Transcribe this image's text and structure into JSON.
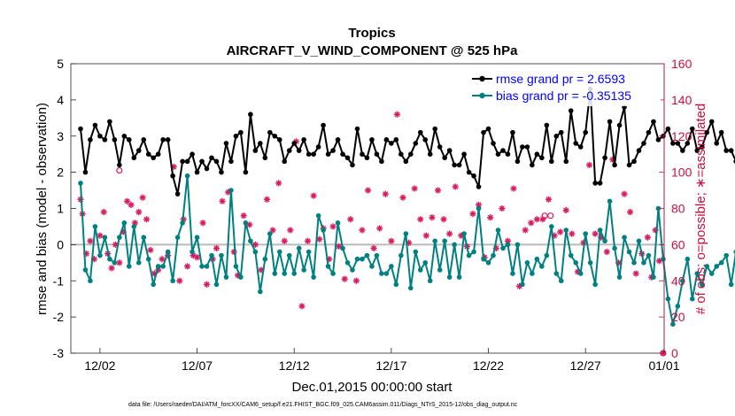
{
  "chart_data": {
    "type": "line",
    "title": "Tropics",
    "subtitle": "AIRCRAFT_V_WIND_COMPONENT @ 525 hPa",
    "xlabel": "Dec.01,2015 00:00:00 start",
    "ylabel": "rmse and bias (model - observation)",
    "y2label": "# of obs: o=possible; ∗=assimilated",
    "ylim": [
      -3,
      5
    ],
    "y2lim": [
      0,
      160
    ],
    "xlim": [
      0.5,
      31.05
    ],
    "yticks": [
      "-3",
      "-2",
      "-1",
      "0",
      "1",
      "2",
      "3",
      "4",
      "5"
    ],
    "y2ticks": [
      "0",
      "20",
      "40",
      "60",
      "80",
      "100",
      "120",
      "140",
      "160"
    ],
    "xticks": [
      {
        "x": 2,
        "label": "12/02"
      },
      {
        "x": 7,
        "label": "12/07"
      },
      {
        "x": 12,
        "label": "12/12"
      },
      {
        "x": 17,
        "label": "12/17"
      },
      {
        "x": 22,
        "label": "12/22"
      },
      {
        "x": 27,
        "label": "12/27"
      },
      {
        "x": 32,
        "label": "01/01"
      }
    ],
    "legend": [
      {
        "label": "rmse grand pr = 2.6593",
        "color": "#000000"
      },
      {
        "label": "bias grand pr = -0.35135",
        "color": "#008080"
      }
    ],
    "legend_position": "top-right",
    "colors": {
      "rmse": "#000000",
      "bias": "#008080",
      "obs": "#d81b60",
      "zero": "#bbbbbb"
    },
    "x_start": 1,
    "x_step": 0.25,
    "series": [
      {
        "name": "rmse",
        "axis": "left",
        "values": [
          3.2,
          2.0,
          2.9,
          3.3,
          3.0,
          2.9,
          3.4,
          2.9,
          2.2,
          3.0,
          2.9,
          2.4,
          2.6,
          2.9,
          2.5,
          2.4,
          2.5,
          2.9,
          2.9,
          1.9,
          1.4,
          2.3,
          2.3,
          2.5,
          2.0,
          2.3,
          2.1,
          2.4,
          2.3,
          2.0,
          2.8,
          2.3,
          3.0,
          3.1,
          2.0,
          3.6,
          2.6,
          2.8,
          2.4,
          3.1,
          3.0,
          2.9,
          2.3,
          2.6,
          2.8,
          2.6,
          2.9,
          2.5,
          2.5,
          2.7,
          3.3,
          2.5,
          2.6,
          2.9,
          2.5,
          2.4,
          2.2,
          3.2,
          2.5,
          2.4,
          2.9,
          2.5,
          2.3,
          2.9,
          2.8,
          2.9,
          2.5,
          2.3,
          2.5,
          2.8,
          3.1,
          2.9,
          2.5,
          3.2,
          2.7,
          2.4,
          2.6,
          2.2,
          2.2,
          2.5,
          2.0,
          1.9,
          1.6,
          3.1,
          3.2,
          2.8,
          2.5,
          2.6,
          2.5,
          3.1,
          2.3,
          2.7,
          2.7,
          2.2,
          2.5,
          2.4,
          3.3,
          2.3,
          3.0,
          3.1,
          2.3,
          3.7,
          2.8,
          2.7,
          3.1,
          4.3,
          1.7,
          1.7,
          2.4,
          3.4,
          2.2,
          3.3,
          3.8,
          2.2,
          2.3,
          2.6,
          2.8,
          3.1,
          3.4,
          2.9,
          3.0,
          3.2,
          2.8,
          2.8,
          2.6,
          2.8,
          3.2,
          2.6,
          2.7,
          3.1,
          3.4,
          2.8,
          3.1,
          2.6,
          2.6,
          2.3,
          2.5,
          2.3,
          2.4,
          2.3,
          2.4,
          2.5,
          3.5,
          2.4
        ]
      },
      {
        "name": "bias",
        "axis": "left",
        "values": [
          1.7,
          -0.7,
          -1.0,
          0.5,
          -0.3,
          0.2,
          -0.4,
          -0.5,
          0.2,
          0.6,
          -0.6,
          0.5,
          -0.5,
          0.2,
          -0.4,
          -1.1,
          -0.6,
          -0.6,
          -0.2,
          -1.0,
          0.2,
          0.6,
          1.9,
          -0.2,
          0.2,
          -0.6,
          -0.6,
          -0.3,
          -1.1,
          -0.3,
          -0.9,
          1.5,
          -0.6,
          -0.9,
          0.6,
          0.1,
          -0.2,
          -1.3,
          -0.4,
          0.3,
          -0.8,
          -0.2,
          -0.8,
          -0.3,
          -0.8,
          -0.1,
          -0.7,
          -0.2,
          -0.9,
          0.8,
          0.4,
          -0.6,
          -0.8,
          0.6,
          -0.1,
          -0.5,
          -0.7,
          -0.4,
          -0.4,
          -0.3,
          -0.6,
          -0.3,
          -0.8,
          -0.8,
          -0.6,
          -1.1,
          -0.3,
          0.3,
          -1.2,
          -0.2,
          -0.7,
          -0.5,
          -1.0,
          0.1,
          -0.7,
          0.1,
          -0.9,
          0.0,
          -0.9,
          0.3,
          -0.3,
          -0.2,
          1.0,
          -0.4,
          -0.5,
          -0.3,
          0.4,
          -0.1,
          0.0,
          -0.8,
          0.0,
          -1.1,
          -0.5,
          -0.8,
          -0.4,
          -0.6,
          -0.3,
          0.5,
          -0.8,
          -1.0,
          0.4,
          -0.3,
          -0.5,
          -0.8,
          0.3,
          -0.5,
          -1.1,
          0.4,
          0.1,
          1.2,
          -0.1,
          -0.9,
          0.2,
          -0.2,
          -0.5,
          0.1,
          -0.5,
          -0.3,
          -0.9,
          1.0,
          -0.4,
          -1.5,
          -2.2,
          -1.7,
          -1.0,
          -0.4,
          -1.5,
          -0.8,
          -1.1,
          -0.6,
          -0.8,
          -0.6,
          -0.5,
          -0.3,
          -1.1,
          -0.2,
          -0.7,
          0.5,
          -0.8,
          0.2,
          0.6,
          -0.5,
          0.8,
          -0.6
        ]
      },
      {
        "name": "assimilated",
        "axis": "right",
        "marker": "asterisk",
        "points": [
          [
            1.0,
            85
          ],
          [
            1.1,
            77
          ],
          [
            1.3,
            55
          ],
          [
            1.5,
            62
          ],
          [
            1.7,
            52
          ],
          [
            2.0,
            65
          ],
          [
            2.2,
            78
          ],
          [
            2.4,
            55
          ],
          [
            2.6,
            47
          ],
          [
            2.8,
            60
          ],
          [
            3.0,
            50
          ],
          [
            3.2,
            67
          ],
          [
            3.4,
            84
          ],
          [
            3.6,
            82
          ],
          [
            3.8,
            72
          ],
          [
            4.0,
            78
          ],
          [
            4.2,
            86
          ],
          [
            4.4,
            74
          ],
          [
            4.6,
            57
          ],
          [
            4.8,
            44
          ],
          [
            5.0,
            46
          ],
          [
            5.2,
            52
          ],
          [
            5.5,
            54
          ],
          [
            5.8,
            103
          ],
          [
            6.1,
            40
          ],
          [
            6.3,
            74
          ],
          [
            6.5,
            48
          ],
          [
            6.8,
            54
          ],
          [
            7.0,
            53
          ],
          [
            7.3,
            72
          ],
          [
            7.5,
            38
          ],
          [
            7.8,
            52
          ],
          [
            8.0,
            58
          ],
          [
            8.3,
            84
          ],
          [
            8.6,
            89
          ],
          [
            8.9,
            56
          ],
          [
            9.1,
            43
          ],
          [
            9.4,
            76
          ],
          [
            9.7,
            71
          ],
          [
            10.0,
            60
          ],
          [
            10.3,
            46
          ],
          [
            10.6,
            85
          ],
          [
            10.9,
            68
          ],
          [
            11.2,
            94
          ],
          [
            11.5,
            62
          ],
          [
            11.8,
            68
          ],
          [
            12.1,
            117
          ],
          [
            12.4,
            26
          ],
          [
            12.7,
            62
          ],
          [
            13.0,
            87
          ],
          [
            13.3,
            63
          ],
          [
            13.5,
            69
          ],
          [
            13.8,
            52
          ],
          [
            14.0,
            70
          ],
          [
            14.3,
            59
          ],
          [
            14.6,
            41
          ],
          [
            14.9,
            74
          ],
          [
            15.2,
            40
          ],
          [
            15.5,
            68
          ],
          [
            15.8,
            90
          ],
          [
            16.1,
            58
          ],
          [
            16.4,
            69
          ],
          [
            16.7,
            88
          ],
          [
            17.0,
            62
          ],
          [
            17.3,
            132
          ],
          [
            17.6,
            86
          ],
          [
            17.9,
            61
          ],
          [
            18.2,
            91
          ],
          [
            18.5,
            74
          ],
          [
            18.8,
            65
          ],
          [
            19.1,
            75
          ],
          [
            19.4,
            90
          ],
          [
            19.7,
            74
          ],
          [
            20.0,
            66
          ],
          [
            20.3,
            92
          ],
          [
            20.6,
            65
          ],
          [
            20.9,
            59
          ],
          [
            21.2,
            77
          ],
          [
            21.5,
            82
          ],
          [
            21.8,
            53
          ],
          [
            22.1,
            75
          ],
          [
            22.4,
            58
          ],
          [
            22.7,
            80
          ],
          [
            23.0,
            62
          ],
          [
            23.3,
            91
          ],
          [
            23.6,
            37
          ],
          [
            23.9,
            68
          ],
          [
            24.2,
            72
          ],
          [
            24.5,
            74
          ],
          [
            24.8,
            74
          ],
          [
            25.1,
            85
          ],
          [
            25.4,
            65
          ],
          [
            25.7,
            67
          ],
          [
            26.0,
            79
          ],
          [
            26.3,
            66
          ],
          [
            26.6,
            45
          ],
          [
            26.9,
            61
          ],
          [
            27.2,
            104
          ],
          [
            27.5,
            66
          ],
          [
            27.8,
            64
          ],
          [
            28.1,
            56
          ],
          [
            28.4,
            107
          ],
          [
            28.7,
            50
          ],
          [
            29.0,
            88
          ],
          [
            29.3,
            78
          ],
          [
            29.6,
            44
          ],
          [
            29.9,
            55
          ],
          [
            30.2,
            64
          ],
          [
            30.4,
            42
          ],
          [
            30.6,
            68
          ],
          [
            30.8,
            51
          ],
          [
            31.0,
            0
          ]
        ]
      },
      {
        "name": "possible",
        "axis": "right",
        "marker": "circle",
        "points": [
          [
            3.0,
            101
          ],
          [
            24.9,
            76
          ],
          [
            25.2,
            76
          ],
          [
            31.0,
            0
          ]
        ]
      }
    ],
    "footer": "data file: /Users/raeder/DAI/ATM_forcXX/CAM6_setup/f.e21.FHIST_BGC.f09_025.CAM6assim.011/Diags_NTrS_2015-12/obs_diag_output.nc"
  }
}
